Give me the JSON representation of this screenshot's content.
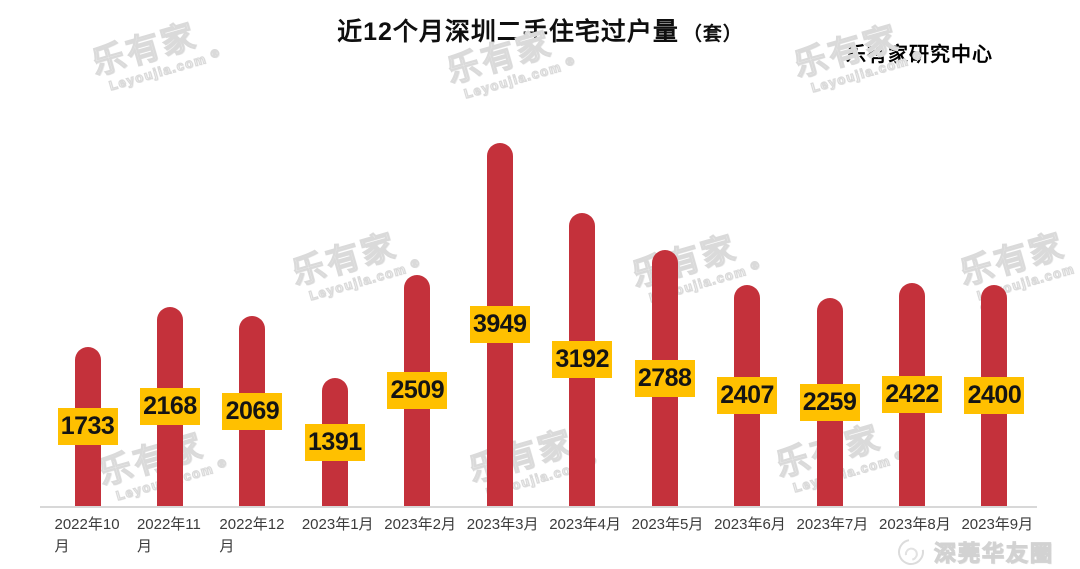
{
  "page": {
    "title_main": "近12个月深圳二手住宅过户量",
    "title_unit": "（套）",
    "source_label": "乐有家研究中心",
    "footer_stamp": "深莞华友圈"
  },
  "watermark": {
    "brand": "乐有家",
    "domain": "Leyoujia.com",
    "registered": "®"
  },
  "chart_data": {
    "type": "bar",
    "title": "近12个月深圳二手住宅过户量（套）",
    "categories": [
      "2022年10月",
      "2022年11月",
      "2022年12月",
      "2023年1月",
      "2023年2月",
      "2023年3月",
      "2023年4月",
      "2023年5月",
      "2023年6月",
      "2023年7月",
      "2023年8月",
      "2023年9月"
    ],
    "values": [
      1733,
      2168,
      2069,
      1391,
      2509,
      3949,
      3192,
      2788,
      2407,
      2259,
      2422,
      2400
    ],
    "ylim": [
      0,
      4000
    ],
    "grid": false,
    "legend": false,
    "data_label_position": "inside-center",
    "bar_color": "#C4313B",
    "label_bg_color": "#FFC000",
    "label_text_color": "#141414",
    "axis_line_color": "#D8D8D8",
    "category_text_color": "#3B3B3B"
  }
}
